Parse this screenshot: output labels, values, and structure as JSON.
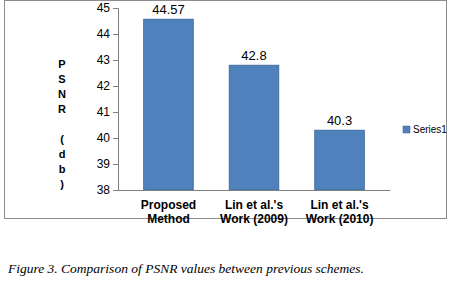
{
  "chart_data": {
    "type": "bar",
    "title": "Figure 3. Comparison of PSNR values between previous schemes.",
    "y_label": "PSNR (db)",
    "categories": [
      "Proposed Method",
      "Lin et al.'s Work (2009)",
      "Lin et al.'s Work (2010)"
    ],
    "series": [
      {
        "name": "Series1",
        "color": "#4f81bd",
        "values": [
          44.57,
          42.8,
          40.3
        ]
      }
    ],
    "ylim": [
      38,
      45
    ],
    "yticks": [
      38,
      39,
      40,
      41,
      42,
      43,
      44,
      45
    ],
    "grid": false,
    "legend": "right",
    "data_labels": true
  }
}
